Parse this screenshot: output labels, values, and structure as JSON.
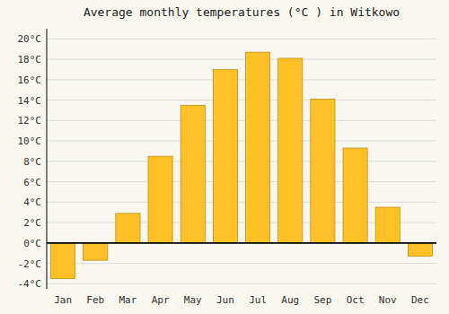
{
  "chart_data": {
    "type": "bar",
    "title": "Average monthly temperatures (°C ) in Witkowo",
    "categories": [
      "Jan",
      "Feb",
      "Mar",
      "Apr",
      "May",
      "Jun",
      "Jul",
      "Aug",
      "Sep",
      "Oct",
      "Nov",
      "Dec"
    ],
    "values": [
      -3.5,
      -1.7,
      2.9,
      8.5,
      13.5,
      17.0,
      18.7,
      18.1,
      14.1,
      9.3,
      3.5,
      -1.3
    ],
    "color": "#FFC125",
    "ylim": [
      -4.5,
      21.0
    ],
    "yticks": [
      {
        "value": -4,
        "label": "-4°C"
      },
      {
        "value": -2,
        "label": "-2°C"
      },
      {
        "value": 0,
        "label": "0°C"
      },
      {
        "value": 2,
        "label": "2°C"
      },
      {
        "value": 4,
        "label": "4°C"
      },
      {
        "value": 6,
        "label": "6°C"
      },
      {
        "value": 8,
        "label": "8°C"
      },
      {
        "value": 10,
        "label": "10°C"
      },
      {
        "value": 12,
        "label": "12°C"
      },
      {
        "value": 14,
        "label": "14°C"
      },
      {
        "value": 16,
        "label": "16°C"
      },
      {
        "value": 18,
        "label": "18°C"
      },
      {
        "value": 20,
        "label": "20°C"
      }
    ],
    "grid": true
  }
}
